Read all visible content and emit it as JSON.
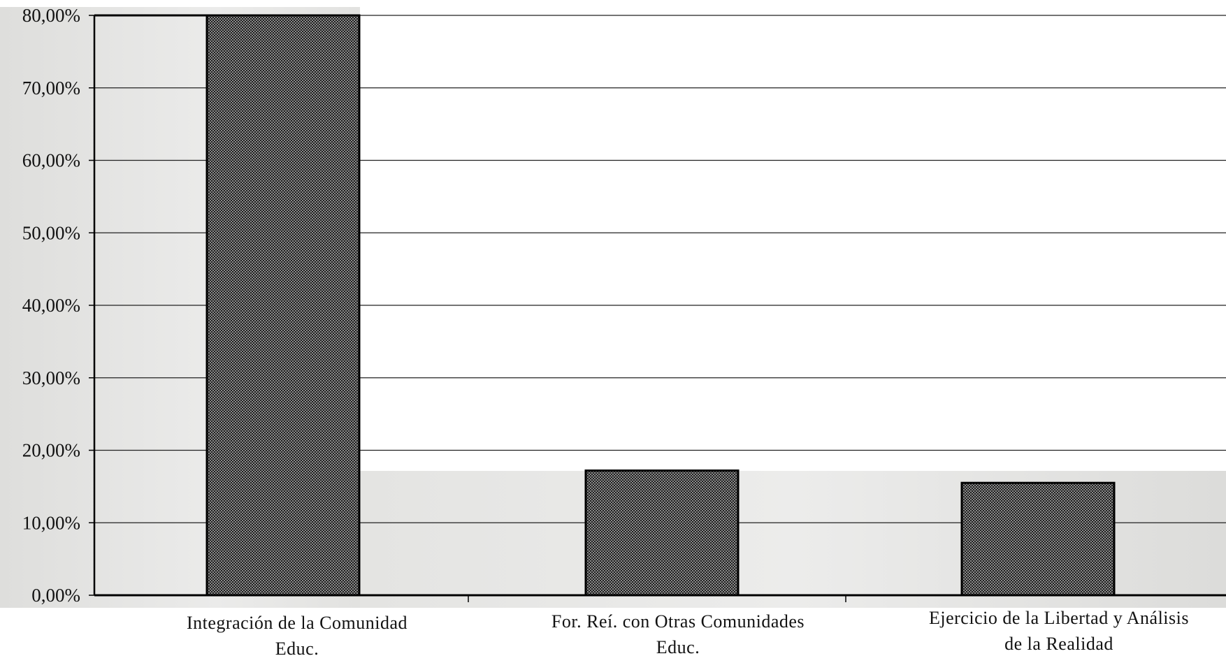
{
  "chart_data": {
    "type": "bar",
    "categories": [
      "Integración de la Comunidad Educ.",
      "For. Reí. con Otras Comunidades Educ.",
      "Ejercicio de la Libertad y Análisis de la Realidad"
    ],
    "series": [
      {
        "values": [
          80.0,
          17.2,
          15.5
        ]
      }
    ],
    "ylim": [
      0,
      80
    ],
    "yticks": [
      "0,00%",
      "10,00%",
      "20,00%",
      "30,00%",
      "40,00%",
      "50,00%",
      "60,00%",
      "70,00%",
      "80,00%"
    ],
    "grid": true,
    "legend": "none",
    "colors": {
      "bar_fill": "#4a4a4a",
      "bar_edge": "#000000",
      "paper": "#e6e6e3",
      "gridline": "#222222"
    }
  }
}
